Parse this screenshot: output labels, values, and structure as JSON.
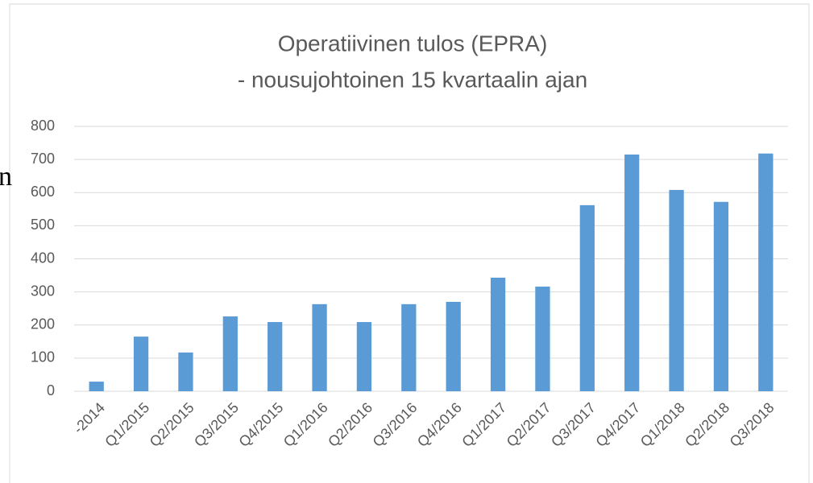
{
  "side_text": "n",
  "chart_data": {
    "type": "bar",
    "title": "Operatiivinen tulos (EPRA)",
    "subtitle": "- nousujohtoinen 15 kvartaalin ajan",
    "categories": [
      "-2014",
      "Q1/2015",
      "Q2/2015",
      "Q3/2015",
      "Q4/2015",
      "Q1/2016",
      "Q2/2016",
      "Q3/2016",
      "Q4/2016",
      "Q1/2017",
      "Q2/2017",
      "Q3/2017",
      "Q4/2017",
      "Q1/2018",
      "Q2/2018",
      "Q3/2018"
    ],
    "values": [
      29,
      165,
      117,
      226,
      209,
      263,
      209,
      263,
      270,
      343,
      316,
      562,
      715,
      608,
      572,
      718
    ],
    "color": "#5b9bd5",
    "ylim": [
      0,
      800
    ],
    "yticks": [
      0,
      100,
      200,
      300,
      400,
      500,
      600,
      700,
      800
    ],
    "grid": true
  }
}
